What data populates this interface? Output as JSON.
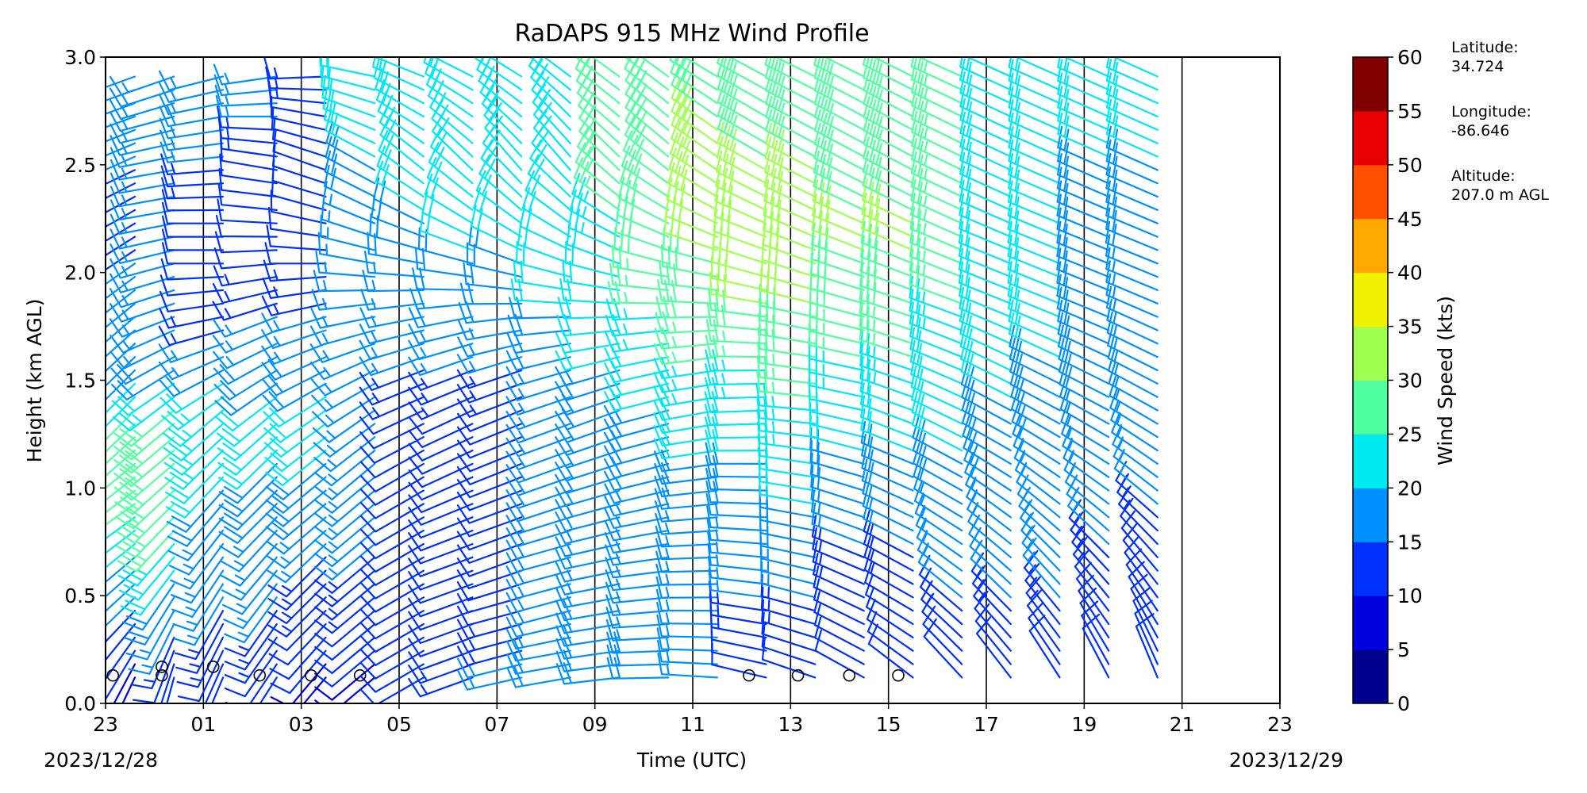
{
  "chart_data": {
    "type": "wind-barb-profile",
    "title": "RaDAPS 915 MHz Wind Profile",
    "xlabel": "Time (UTC)",
    "ylabel": "Height (km AGL)",
    "x_tick_labels": [
      "23",
      "01",
      "03",
      "05",
      "07",
      "09",
      "11",
      "13",
      "15",
      "17",
      "19",
      "21",
      "23"
    ],
    "x_range_hours": [
      0,
      24
    ],
    "date_start": "2023/12/28",
    "date_end": "2023/12/29",
    "ylim": [
      0,
      3.0
    ],
    "y_ticks": [
      0.0,
      0.5,
      1.0,
      1.5,
      2.0,
      2.5,
      3.0
    ],
    "grid": "vertical lines at every 2 hours",
    "colorbar": {
      "label": "Wind Speed (kts)",
      "ticks": [
        0,
        5,
        10,
        15,
        20,
        25,
        30,
        35,
        40,
        45,
        50,
        55,
        60
      ],
      "colors": [
        "#00008f",
        "#0000e0",
        "#0030ff",
        "#0090ff",
        "#00e8f0",
        "#50ffa0",
        "#a0ff50",
        "#f0f000",
        "#ffa800",
        "#ff5000",
        "#e80000",
        "#800000"
      ]
    },
    "calm_markers_hours": [
      0.15,
      1.15,
      1.15,
      2.2,
      3.15,
      4.2,
      5.2,
      13.15,
      14.15,
      15.2,
      16.2
    ],
    "calm_markers_heights": [
      0.13,
      0.13,
      0.17,
      0.17,
      0.13,
      0.13,
      0.13,
      0.13,
      0.13,
      0.13,
      0.13
    ],
    "profiles": [
      {
        "hour": 0.0,
        "speed": [
          12,
          15,
          15,
          20,
          22,
          25,
          25,
          20,
          15,
          15,
          20,
          22,
          20,
          20
        ],
        "dir": [
          240,
          235,
          230,
          225,
          220,
          215,
          210,
          215,
          220,
          225,
          230,
          235,
          240,
          245
        ]
      },
      {
        "hour": 0.6,
        "speed": [
          8,
          10,
          15,
          20,
          25,
          28,
          25,
          18,
          15,
          15,
          12,
          15,
          18,
          20
        ],
        "dir": [
          200,
          210,
          225,
          230,
          235,
          230,
          225,
          225,
          230,
          235,
          240,
          245,
          250,
          250
        ]
      },
      {
        "hour": 1.4,
        "speed": [
          8,
          12,
          18,
          22,
          28,
          30,
          25,
          18,
          15,
          15,
          15,
          15,
          15,
          15
        ],
        "dir": [
          190,
          200,
          210,
          220,
          225,
          230,
          230,
          240,
          250,
          255,
          260,
          260,
          255,
          250
        ]
      },
      {
        "hour": 2.4,
        "speed": [
          10,
          12,
          15,
          15,
          18,
          22,
          25,
          18,
          12,
          12,
          12,
          15,
          18,
          15
        ],
        "dir": [
          200,
          205,
          210,
          215,
          220,
          225,
          230,
          245,
          260,
          270,
          270,
          265,
          260,
          255
        ]
      },
      {
        "hour": 3.5,
        "speed": [
          8,
          12,
          15,
          15,
          18,
          20,
          22,
          18,
          15,
          12,
          10,
          12,
          15,
          15
        ],
        "dir": [
          210,
          215,
          215,
          220,
          225,
          225,
          230,
          240,
          250,
          265,
          275,
          280,
          270,
          260
        ]
      },
      {
        "hour": 4.5,
        "speed": [
          8,
          10,
          12,
          15,
          18,
          20,
          22,
          18,
          15,
          12,
          10,
          10,
          12,
          15
        ],
        "dir": [
          220,
          220,
          225,
          225,
          230,
          230,
          235,
          245,
          255,
          270,
          285,
          290,
          280,
          265
        ]
      },
      {
        "hour": 5.5,
        "speed": [
          8,
          10,
          12,
          15,
          15,
          15,
          15,
          15,
          15,
          15,
          18,
          20,
          22,
          22
        ],
        "dir": [
          230,
          230,
          230,
          230,
          230,
          230,
          235,
          245,
          260,
          280,
          295,
          300,
          290,
          280
        ]
      },
      {
        "hour": 6.5,
        "speed": [
          12,
          12,
          12,
          12,
          12,
          12,
          12,
          15,
          15,
          18,
          20,
          22,
          22,
          20
        ],
        "dir": [
          240,
          240,
          240,
          240,
          240,
          240,
          245,
          250,
          260,
          280,
          300,
          310,
          300,
          290
        ]
      },
      {
        "hour": 7.5,
        "speed": [
          15,
          12,
          12,
          12,
          12,
          12,
          12,
          15,
          18,
          20,
          22,
          22,
          22,
          20
        ],
        "dir": [
          250,
          250,
          250,
          250,
          248,
          245,
          245,
          250,
          260,
          285,
          305,
          315,
          305,
          295
        ]
      },
      {
        "hour": 8.5,
        "speed": [
          18,
          15,
          12,
          12,
          12,
          12,
          12,
          15,
          18,
          20,
          22,
          22,
          22,
          22
        ],
        "dir": [
          260,
          255,
          255,
          250,
          250,
          248,
          248,
          252,
          265,
          290,
          310,
          320,
          310,
          300
        ]
      },
      {
        "hour": 9.5,
        "speed": [
          20,
          18,
          15,
          15,
          15,
          15,
          15,
          18,
          20,
          22,
          22,
          22,
          22,
          22
        ],
        "dir": [
          260,
          260,
          255,
          255,
          252,
          250,
          250,
          255,
          270,
          290,
          310,
          320,
          315,
          305
        ]
      },
      {
        "hour": 10.5,
        "speed": [
          20,
          18,
          18,
          15,
          15,
          15,
          18,
          20,
          22,
          22,
          25,
          25,
          25,
          25
        ],
        "dir": [
          265,
          262,
          260,
          258,
          255,
          252,
          250,
          255,
          270,
          290,
          305,
          315,
          310,
          305
        ]
      },
      {
        "hour": 11.5,
        "speed": [
          18,
          18,
          15,
          15,
          15,
          18,
          20,
          22,
          25,
          28,
          28,
          28,
          28,
          28
        ],
        "dir": [
          270,
          268,
          265,
          262,
          258,
          255,
          255,
          258,
          268,
          285,
          300,
          310,
          310,
          305
        ]
      },
      {
        "hour": 12.5,
        "speed": [
          15,
          15,
          15,
          15,
          18,
          20,
          22,
          25,
          28,
          30,
          30,
          30,
          30,
          28
        ],
        "dir": [
          275,
          272,
          270,
          268,
          265,
          262,
          260,
          262,
          270,
          285,
          298,
          305,
          305,
          300
        ]
      },
      {
        "hour": 13.5,
        "speed": [
          12,
          12,
          15,
          15,
          18,
          20,
          22,
          25,
          30,
          32,
          32,
          30,
          28,
          28
        ],
        "dir": [
          285,
          282,
          278,
          275,
          272,
          270,
          268,
          270,
          278,
          288,
          295,
          300,
          300,
          298
        ]
      },
      {
        "hour": 14.5,
        "speed": [
          12,
          12,
          15,
          18,
          20,
          22,
          25,
          28,
          30,
          32,
          32,
          30,
          28,
          28
        ],
        "dir": [
          290,
          288,
          285,
          282,
          280,
          278,
          275,
          278,
          282,
          290,
          295,
          298,
          298,
          296
        ]
      },
      {
        "hour": 15.5,
        "speed": [
          12,
          12,
          12,
          15,
          18,
          20,
          22,
          25,
          28,
          30,
          30,
          28,
          28,
          28
        ],
        "dir": [
          300,
          298,
          295,
          292,
          288,
          285,
          282,
          282,
          285,
          290,
          295,
          298,
          298,
          296
        ]
      },
      {
        "hour": 16.5,
        "speed": [
          10,
          12,
          12,
          15,
          18,
          20,
          22,
          25,
          28,
          30,
          30,
          28,
          28,
          28
        ],
        "dir": [
          310,
          305,
          300,
          298,
          295,
          292,
          290,
          288,
          288,
          292,
          296,
          298,
          298,
          296
        ]
      },
      {
        "hour": 17.5,
        "speed": [
          10,
          12,
          15,
          15,
          18,
          20,
          22,
          22,
          25,
          25,
          25,
          25,
          25,
          25
        ],
        "dir": [
          320,
          315,
          310,
          305,
          300,
          298,
          295,
          292,
          290,
          292,
          295,
          296,
          296,
          294
        ]
      },
      {
        "hour": 18.5,
        "speed": [
          10,
          12,
          15,
          15,
          18,
          18,
          20,
          22,
          22,
          22,
          22,
          22,
          22,
          22
        ],
        "dir": [
          325,
          320,
          315,
          310,
          305,
          300,
          298,
          295,
          292,
          292,
          294,
          295,
          295,
          294
        ]
      },
      {
        "hour": 19.5,
        "speed": [
          10,
          12,
          15,
          15,
          15,
          18,
          18,
          20,
          20,
          20,
          20,
          20,
          20,
          22
        ],
        "dir": [
          330,
          325,
          320,
          315,
          308,
          302,
          298,
          295,
          292,
          292,
          293,
          294,
          294,
          294
        ]
      },
      {
        "hour": 20.5,
        "speed": [
          10,
          12,
          12,
          15,
          15,
          15,
          18,
          18,
          18,
          18,
          18,
          20,
          20,
          22
        ],
        "dir": [
          335,
          330,
          322,
          315,
          308,
          302,
          298,
          295,
          292,
          292,
          293,
          294,
          294,
          294
        ]
      },
      {
        "hour": 21.5,
        "speed": [
          10,
          10,
          12,
          12,
          15,
          15,
          15,
          15,
          15,
          18,
          18,
          20,
          22,
          22
        ],
        "dir": [
          340,
          335,
          325,
          318,
          310,
          304,
          299,
          296,
          293,
          292,
          293,
          294,
          294,
          294
        ]
      }
    ]
  },
  "site_info": {
    "latitude_label": "Latitude:",
    "latitude_value": "34.724",
    "longitude_label": "Longitude:",
    "longitude_value": "-86.646",
    "altitude_label": "Altitude:",
    "altitude_value": "207.0 m AGL"
  }
}
